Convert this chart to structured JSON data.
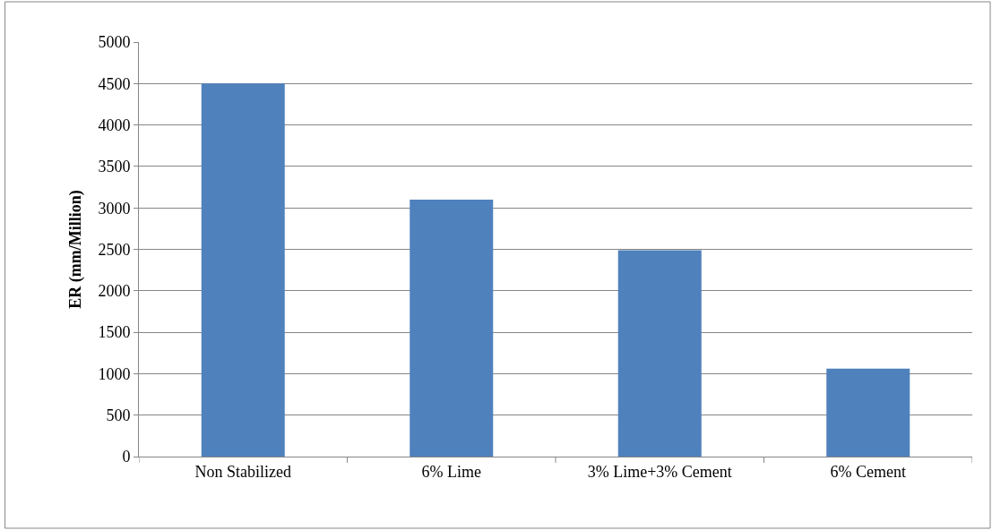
{
  "chart_data": {
    "type": "bar",
    "ylabel": "ER (mm/Million)",
    "categories": [
      "Non Stabilized",
      "6% Lime",
      "3% Lime+3% Cement",
      "6% Cement"
    ],
    "values": [
      4500,
      3100,
      2490,
      1060
    ],
    "color": "#4f81bd",
    "ylim": [
      0,
      5000
    ],
    "yticks": [
      0,
      500,
      1000,
      1500,
      2000,
      2500,
      3000,
      3500,
      4000,
      4500,
      5000
    ],
    "grid": "y"
  }
}
